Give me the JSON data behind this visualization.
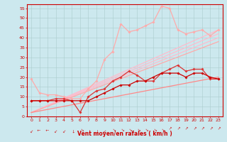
{
  "xlabel": "Vent moyen/en rafales ( km/h )",
  "xlim": [
    0,
    23
  ],
  "ylim": [
    0,
    57
  ],
  "yticks": [
    0,
    5,
    10,
    15,
    20,
    25,
    30,
    35,
    40,
    45,
    50,
    55
  ],
  "xticks": [
    0,
    1,
    2,
    3,
    4,
    5,
    6,
    7,
    8,
    9,
    10,
    11,
    12,
    13,
    14,
    15,
    16,
    17,
    18,
    19,
    20,
    21,
    22,
    23
  ],
  "background_color": "#cce8ee",
  "grid_color": "#aacccc",
  "series": [
    {
      "x": [
        0,
        23
      ],
      "y": [
        2,
        44
      ],
      "color": "#ffbbcc",
      "lw": 0.9,
      "marker": null
    },
    {
      "x": [
        0,
        23
      ],
      "y": [
        2,
        42
      ],
      "color": "#ffbbcc",
      "lw": 0.9,
      "marker": null
    },
    {
      "x": [
        0,
        23
      ],
      "y": [
        2,
        40
      ],
      "color": "#ffbbcc",
      "lw": 0.9,
      "marker": null
    },
    {
      "x": [
        0,
        23
      ],
      "y": [
        2,
        38
      ],
      "color": "#ffaaaa",
      "lw": 0.9,
      "marker": null
    },
    {
      "x": [
        0,
        23
      ],
      "y": [
        2,
        20
      ],
      "color": "#ff8888",
      "lw": 0.9,
      "marker": null
    },
    {
      "x": [
        0,
        1,
        2,
        3,
        4,
        5,
        6,
        7,
        8,
        9,
        10,
        11,
        12,
        13,
        14,
        15,
        16,
        17,
        18,
        19,
        20,
        21,
        22,
        23
      ],
      "y": [
        19,
        12,
        11,
        11,
        10,
        9,
        9,
        14,
        18,
        29,
        33,
        47,
        43,
        44,
        46,
        48,
        56,
        55,
        44,
        42,
        43,
        44,
        41,
        44
      ],
      "color": "#ffaaaa",
      "lw": 0.9,
      "marker": "D",
      "ms": 1.8
    },
    {
      "x": [
        0,
        1,
        2,
        3,
        4,
        5,
        6,
        7,
        8,
        9,
        10,
        11,
        12,
        13,
        14,
        15,
        16,
        17,
        18,
        19,
        20,
        21,
        22,
        23
      ],
      "y": [
        8,
        8,
        8,
        9,
        9,
        8,
        2,
        10,
        13,
        14,
        18,
        20,
        23,
        21,
        18,
        18,
        22,
        24,
        26,
        23,
        24,
        24,
        19,
        19
      ],
      "color": "#dd3333",
      "lw": 0.9,
      "marker": "D",
      "ms": 1.8
    },
    {
      "x": [
        0,
        1,
        2,
        3,
        4,
        5,
        6,
        7,
        8,
        9,
        10,
        11,
        12,
        13,
        14,
        15,
        16,
        17,
        18,
        19,
        20,
        21,
        22,
        23
      ],
      "y": [
        8,
        8,
        8,
        8,
        8,
        8,
        8,
        8,
        10,
        12,
        14,
        16,
        16,
        18,
        18,
        20,
        22,
        22,
        22,
        20,
        22,
        22,
        20,
        19
      ],
      "color": "#cc0000",
      "lw": 0.9,
      "marker": "D",
      "ms": 1.8
    }
  ]
}
